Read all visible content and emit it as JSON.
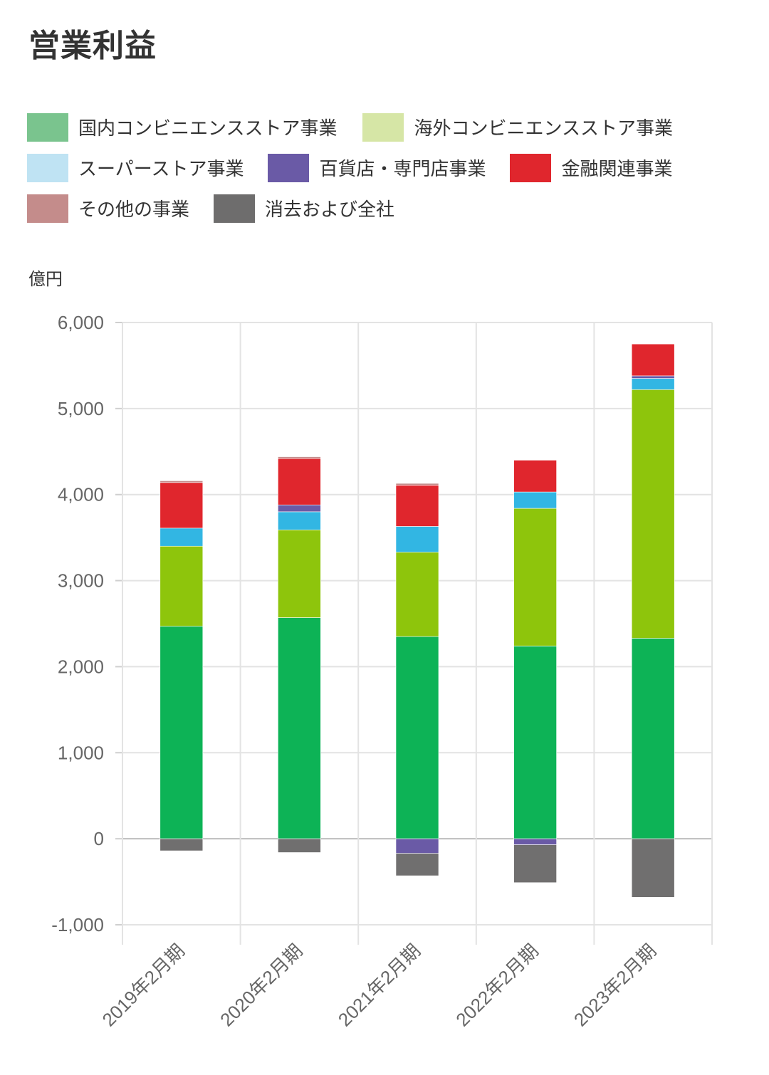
{
  "title": "営業利益",
  "unit_label": "億円",
  "legend": [
    {
      "label": "国内コンビニエンスストア事業",
      "color": "#7ac48e"
    },
    {
      "label": "海外コンビニエンスストア事業",
      "color": "#d6e6a6"
    },
    {
      "label": "スーパーストア事業",
      "color": "#bfe3f3"
    },
    {
      "label": "百貨店・専門店事業",
      "color": "#6a5aa6"
    },
    {
      "label": "金融関連事業",
      "color": "#e0262d"
    },
    {
      "label": "その他の事業",
      "color": "#c48c8b"
    },
    {
      "label": "消去および全社",
      "color": "#6e6d6d"
    }
  ],
  "chart_data": {
    "type": "bar",
    "stacked": true,
    "title": "営業利益",
    "ylabel": "億円",
    "xlabel": "",
    "ylim": [
      -1000,
      6000
    ],
    "yticks": [
      6000,
      5000,
      4000,
      3000,
      2000,
      1000,
      0,
      -1000
    ],
    "ytick_labels": [
      "6,000",
      "5,000",
      "4,000",
      "3,000",
      "2,000",
      "1,000",
      "0",
      "-1,000"
    ],
    "categories": [
      "2019年2月期",
      "2020年2月期",
      "2021年2月期",
      "2022年2月期",
      "2023年2月期"
    ],
    "series": [
      {
        "name": "国内コンビニエンスストア事業",
        "color": "#0db356",
        "values": [
          2470,
          2570,
          2350,
          2240,
          2330
        ]
      },
      {
        "name": "海外コンビニエンスストア事業",
        "color": "#8ec50c",
        "values": [
          930,
          1020,
          980,
          1600,
          2890
        ]
      },
      {
        "name": "スーパーストア事業",
        "color": "#32b6e3",
        "values": [
          210,
          210,
          300,
          190,
          130
        ]
      },
      {
        "name": "百貨店・専門店事業",
        "color": "#6a5aa6",
        "values": [
          0,
          80,
          -170,
          -70,
          30
        ]
      },
      {
        "name": "金融関連事業",
        "color": "#e0262d",
        "values": [
          530,
          540,
          480,
          370,
          370
        ]
      },
      {
        "name": "その他の事業",
        "color": "#c48c8b",
        "values": [
          20,
          20,
          20,
          0,
          0
        ]
      },
      {
        "name": "消去および全社",
        "color": "#706f6f",
        "values": [
          -140,
          -160,
          -260,
          -440,
          -680
        ]
      }
    ],
    "grid": true,
    "legend_position": "top"
  }
}
